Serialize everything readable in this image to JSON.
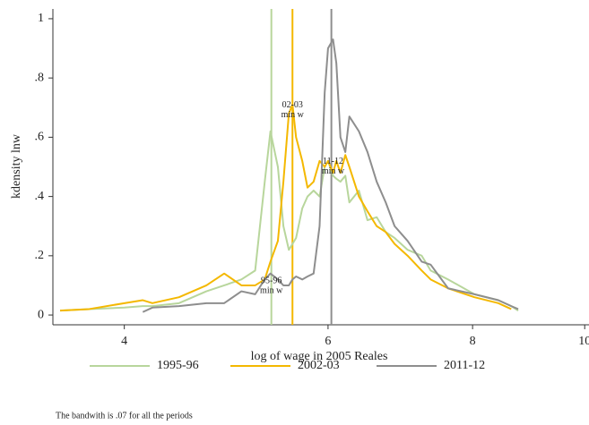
{
  "chart_data": {
    "type": "line",
    "x_label": "log of wage in 2005 Reales",
    "y_label": "kdensity lnw",
    "note": "The bandwith is .07 for all the periods",
    "xscale": "log",
    "xlim": [
      3.47,
      10.05
    ],
    "ylim": [
      -0.033,
      1.033
    ],
    "xticks": [
      4,
      6,
      8,
      10
    ],
    "yticks": [
      {
        "value": 0,
        "label": "0"
      },
      {
        "value": 0.2,
        "label": ".2"
      },
      {
        "value": 0.4,
        "label": ".4"
      },
      {
        "value": 0.6,
        "label": ".6"
      },
      {
        "value": 0.8,
        "label": ".8"
      },
      {
        "value": 1,
        "label": "1"
      }
    ],
    "x": [
      3.52,
      3.73,
      4.0,
      4.15,
      4.23,
      4.46,
      4.71,
      4.88,
      5.05,
      5.19,
      5.29,
      5.35,
      5.43,
      5.49,
      5.55,
      5.59,
      5.63,
      5.7,
      5.76,
      5.83,
      5.9,
      5.96,
      6.0,
      6.06,
      6.1,
      6.15,
      6.21,
      6.26,
      6.38,
      6.49,
      6.61,
      6.73,
      6.85,
      7.03,
      7.23,
      7.36,
      7.62,
      8.03,
      8.42,
      8.64,
      8.76
    ],
    "series": [
      {
        "name": "1995-96",
        "color": "#b8d69c",
        "values": [
          0.015,
          0.02,
          0.025,
          0.03,
          0.03,
          0.04,
          0.08,
          0.1,
          0.12,
          0.15,
          0.45,
          0.62,
          0.5,
          0.3,
          0.22,
          0.24,
          0.26,
          0.36,
          0.4,
          0.42,
          0.4,
          0.5,
          0.52,
          0.47,
          0.46,
          0.45,
          0.47,
          0.38,
          0.42,
          0.32,
          0.33,
          0.28,
          0.26,
          0.22,
          0.2,
          0.15,
          0.12,
          0.07,
          0.05,
          0.03,
          0.015
        ]
      },
      {
        "name": "2002-03",
        "color": "#f4b800",
        "values": [
          0.015,
          0.02,
          0.04,
          0.05,
          0.04,
          0.06,
          0.1,
          0.14,
          0.1,
          0.1,
          0.12,
          0.18,
          0.25,
          0.45,
          0.68,
          0.71,
          0.6,
          0.52,
          0.43,
          0.45,
          0.52,
          0.5,
          0.52,
          0.48,
          0.52,
          0.48,
          0.54,
          0.5,
          0.4,
          0.35,
          0.3,
          0.28,
          0.24,
          0.2,
          0.15,
          0.12,
          0.09,
          0.06,
          0.04,
          0.02,
          null
        ]
      },
      {
        "name": "2011-12",
        "color": "#8e8e8e",
        "values": [
          null,
          null,
          null,
          0.01,
          0.025,
          0.03,
          0.04,
          0.04,
          0.08,
          0.07,
          0.12,
          0.14,
          0.12,
          0.1,
          0.1,
          0.12,
          0.13,
          0.12,
          0.13,
          0.14,
          0.3,
          0.75,
          0.9,
          0.93,
          0.85,
          0.6,
          0.55,
          0.67,
          0.62,
          0.55,
          0.45,
          0.38,
          0.3,
          0.25,
          0.18,
          0.17,
          0.09,
          0.07,
          0.05,
          0.03,
          0.02
        ]
      }
    ],
    "reference_lines": [
      {
        "x": 5.36,
        "color": "#b8d69c"
      },
      {
        "x": 5.59,
        "color": "#f4b800"
      },
      {
        "x": 6.04,
        "color": "#8e8e8e"
      }
    ],
    "annotations": [
      {
        "text": [
          "02-03",
          "min w"
        ],
        "x": 5.59,
        "y": 0.707
      },
      {
        "text": [
          "11-12",
          "min w"
        ],
        "x": 6.06,
        "y": 0.517
      },
      {
        "text": [
          "95-96",
          "min w"
        ],
        "x": 5.36,
        "y": 0.115
      }
    ]
  }
}
